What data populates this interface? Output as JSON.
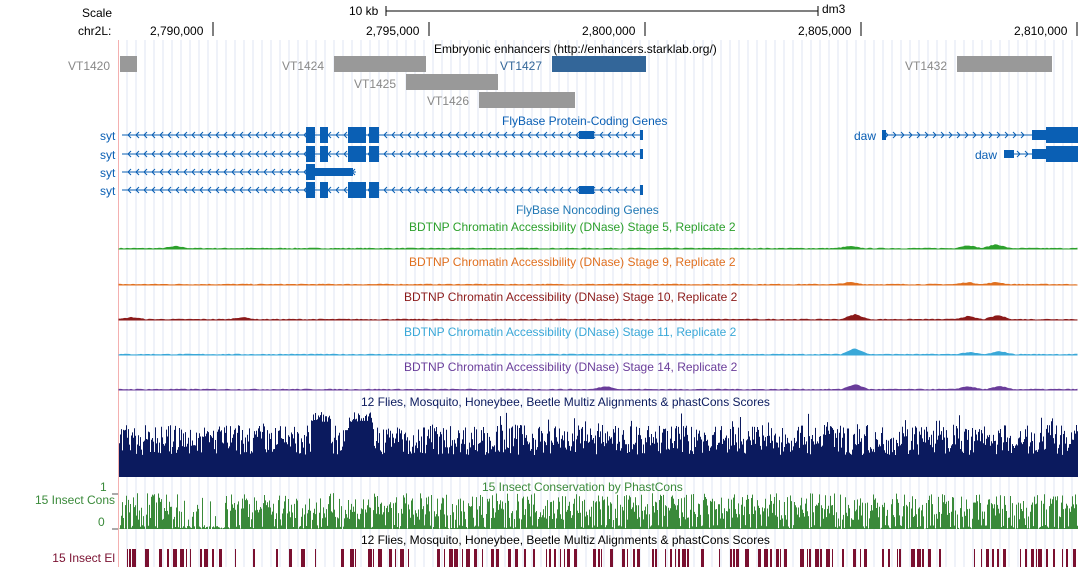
{
  "ruler": {
    "scale_label": "Scale",
    "scale_bar_label": "10 kb",
    "assembly": "dm3",
    "chrom_label": "chr2L:",
    "ticks": [
      "2,790,000",
      "2,795,000",
      "2,800,000",
      "2,805,000",
      "2,810,000"
    ]
  },
  "enhancers": {
    "title": "Embryonic enhancers (http://enhancers.starklab.org/)",
    "items": [
      {
        "name": "VT1420",
        "selected": false
      },
      {
        "name": "VT1424",
        "selected": false
      },
      {
        "name": "VT1427",
        "selected": true
      },
      {
        "name": "VT1425",
        "selected": false
      },
      {
        "name": "VT1426",
        "selected": false
      },
      {
        "name": "VT1432",
        "selected": false
      }
    ]
  },
  "genes": {
    "title": "FlyBase Protein-Coding Genes",
    "left_labels": [
      "syt",
      "syt",
      "syt",
      "syt"
    ],
    "right_labels": [
      "daw",
      "daw"
    ],
    "color": "#0a5fb4"
  },
  "noncoding": {
    "title": "FlyBase Noncoding Genes",
    "color": "#1f77b4"
  },
  "dnase": [
    {
      "title": "BDTNP Chromatin Accessibility (DNase) Stage 5, Replicate 2",
      "color": "#2ca02c"
    },
    {
      "title": "BDTNP Chromatin Accessibility (DNase) Stage 9, Replicate 2",
      "color": "#e07020"
    },
    {
      "title": "BDTNP Chromatin Accessibility (DNase) Stage 10, Replicate 2",
      "color": "#8b1a1a"
    },
    {
      "title": "BDTNP Chromatin Accessibility (DNase) Stage 11, Replicate 2",
      "color": "#3aa8d8"
    },
    {
      "title": "BDTNP Chromatin Accessibility (DNase) Stage 14, Replicate 2",
      "color": "#6a3d9a"
    }
  ],
  "conservation": {
    "title": "12 Flies, Mosquito, Honeybee, Beetle Multiz Alignments & phastCons Scores",
    "color": "#0b1a5e"
  },
  "insect_cons": {
    "side_label": "15 Insect Cons",
    "title": "15 Insect Conservation by PhastCons",
    "ymax_label": "1",
    "ymin_label": "0",
    "color": "#3a8a3a"
  },
  "insect_el": {
    "side_label": "15 Insect El",
    "title": "12 Flies, Mosquito, Honeybee, Beetle Multiz Alignments & phastCons Scores",
    "color": "#7a1030"
  }
}
